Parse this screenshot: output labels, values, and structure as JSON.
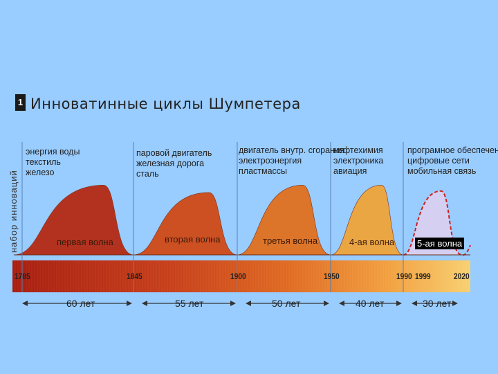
{
  "title": {
    "badge": "1",
    "text": "Инноватинные циклы Шумпетера"
  },
  "colors": {
    "background": "#99ccff",
    "wave1": "#b52a14",
    "wave2": "#d04a18",
    "wave3": "#e0701e",
    "wave4": "#f0a43a",
    "wave5": "#d8d0f0",
    "wave5_line": "#cc2222"
  },
  "chart_data": {
    "type": "area",
    "title": "Инноватинные циклы Шумпетера",
    "ylabel": "набор инноваций",
    "xlabel": "",
    "xlim": [
      1785,
      2025
    ],
    "year_ticks": [
      "1785",
      "1845",
      "1900",
      "1950",
      "1990",
      "1999",
      "2020"
    ],
    "waves": [
      {
        "name": "первая волна",
        "start": 1785,
        "peak": 1830,
        "end": 1845,
        "peak_level": 0.95,
        "innovations": [
          "энергия воды",
          "текстиль",
          "железо"
        ]
      },
      {
        "name": "вторая волна",
        "start": 1845,
        "peak": 1885,
        "end": 1900,
        "peak_level": 0.85,
        "innovations": [
          "паровой двигатель",
          "железная дорога",
          "сталь"
        ]
      },
      {
        "name": "третья волна",
        "start": 1900,
        "peak": 1935,
        "end": 1950,
        "peak_level": 0.95,
        "innovations": [
          "двигатель внутр. сгорания",
          "электроэнергия",
          "пластмассы"
        ]
      },
      {
        "name": "4-ая волна",
        "start": 1950,
        "peak": 1978,
        "end": 1990,
        "peak_level": 0.95,
        "innovations": [
          "нефтехимия",
          "электроника",
          "авиация"
        ]
      },
      {
        "name": "5-ая волна",
        "start": 1990,
        "peak": 2009,
        "end": 2020,
        "peak_level": 0.87,
        "innovations": [
          "програмное обеспечение",
          "цифровые сети",
          "мобильная связь"
        ]
      }
    ],
    "durations": [
      "60 лет",
      "55 лет",
      "50 лет",
      "40 лет",
      "30 лет"
    ]
  }
}
